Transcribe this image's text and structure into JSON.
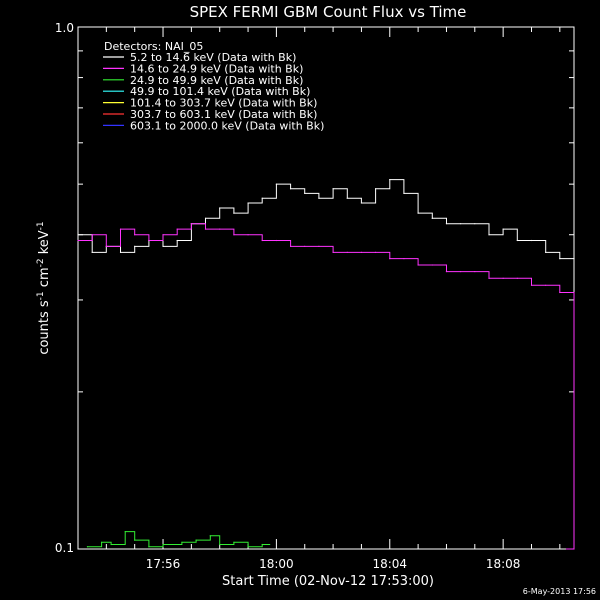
{
  "chart_data": {
    "type": "line",
    "title": "SPEX FERMI GBM Count Flux vs Time",
    "xlabel": "Start Time (02-Nov-12 17:53:00)",
    "ylabel_main": "counts s",
    "ylabel_sup1": "-1",
    "ylabel_mid": " cm",
    "ylabel_sup2": "-2",
    "ylabel_kev": " keV",
    "ylabel_sup3": "-1",
    "y_scale": "log",
    "ylim": [
      0.1,
      1.0
    ],
    "xlim": [
      "17:53:00",
      "18:10:30"
    ],
    "x_ticks": [
      "17:56",
      "18:00",
      "18:04",
      "18:08"
    ],
    "y_tick_labels": [
      "0.1",
      "1.0"
    ],
    "legend": {
      "title": "Detectors: NAI_05",
      "position": "top-left",
      "entries": [
        {
          "label": "5.2 to 14.6 keV (Data with Bk)",
          "color": "#ffffff"
        },
        {
          "label": "14.6 to 24.9 keV (Data with Bk)",
          "color": "#ff33ff"
        },
        {
          "label": "24.9 to 49.9 keV (Data with Bk)",
          "color": "#33ee33"
        },
        {
          "label": "49.9 to 101.4 keV (Data with Bk)",
          "color": "#33ffff"
        },
        {
          "label": "101.4 to 303.7 keV (Data with Bk)",
          "color": "#ffff33"
        },
        {
          "label": "303.7 to 603.1 keV (Data with Bk)",
          "color": "#ff3333"
        },
        {
          "label": "603.1 to 2000.0 keV (Data with Bk)",
          "color": "#3333ff"
        }
      ]
    },
    "series": [
      {
        "color": "#ffffff",
        "x": [
          "17:53:00",
          "17:53:30",
          "17:54:00",
          "17:54:30",
          "17:55:00",
          "17:55:30",
          "17:56:00",
          "17:56:30",
          "17:57:00",
          "17:57:30",
          "17:58:00",
          "17:58:30",
          "17:59:00",
          "17:59:30",
          "18:00:00",
          "18:00:30",
          "18:01:00",
          "18:01:30",
          "18:02:00",
          "18:02:30",
          "18:03:00",
          "18:03:30",
          "18:04:00",
          "18:04:30",
          "18:05:00",
          "18:05:30",
          "18:06:00",
          "18:06:30",
          "18:07:00",
          "18:07:30",
          "18:08:00",
          "18:08:30",
          "18:09:00",
          "18:09:30",
          "18:10:00",
          "18:10:30"
        ],
        "y": [
          0.4,
          0.37,
          0.38,
          0.37,
          0.38,
          0.39,
          0.38,
          0.39,
          0.42,
          0.43,
          0.45,
          0.44,
          0.46,
          0.47,
          0.5,
          0.49,
          0.48,
          0.47,
          0.49,
          0.47,
          0.46,
          0.49,
          0.51,
          0.48,
          0.44,
          0.43,
          0.42,
          0.42,
          0.42,
          0.4,
          0.41,
          0.39,
          0.39,
          0.37,
          0.36,
          0.36
        ]
      },
      {
        "color": "#ff33ff",
        "x": [
          "17:53:00",
          "17:53:30",
          "17:54:00",
          "17:54:30",
          "17:55:00",
          "17:55:30",
          "17:56:00",
          "17:56:30",
          "17:57:00",
          "17:57:30",
          "17:58:00",
          "17:58:30",
          "17:59:00",
          "17:59:30",
          "18:00:00",
          "18:00:30",
          "18:01:00",
          "18:01:30",
          "18:02:00",
          "18:02:30",
          "18:03:00",
          "18:03:30",
          "18:04:00",
          "18:04:30",
          "18:05:00",
          "18:05:30",
          "18:06:00",
          "18:06:30",
          "18:07:00",
          "18:07:30",
          "18:08:00",
          "18:08:30",
          "18:09:00",
          "18:09:30",
          "18:10:00",
          "18:10:30"
        ],
        "y": [
          0.39,
          0.4,
          0.38,
          0.41,
          0.4,
          0.39,
          0.4,
          0.41,
          0.42,
          0.41,
          0.41,
          0.4,
          0.4,
          0.39,
          0.39,
          0.38,
          0.38,
          0.38,
          0.37,
          0.37,
          0.37,
          0.37,
          0.36,
          0.36,
          0.35,
          0.35,
          0.34,
          0.34,
          0.34,
          0.33,
          0.33,
          0.33,
          0.32,
          0.32,
          0.31,
          0.1
        ]
      },
      {
        "color": "#33ee33",
        "x": [
          "17:53:20",
          "17:53:50",
          "17:54:10",
          "17:54:40",
          "17:55:00",
          "17:55:30",
          "17:56:00",
          "17:56:40",
          "17:57:10",
          "17:57:40",
          "17:58:00",
          "17:58:30",
          "17:59:00",
          "17:59:30"
        ],
        "y": [
          0.101,
          0.103,
          0.102,
          0.108,
          0.104,
          0.101,
          0.102,
          0.103,
          0.104,
          0.106,
          0.102,
          0.103,
          0.101,
          0.102
        ]
      }
    ]
  },
  "footer": {
    "stamp": "6-May-2013 17:56"
  }
}
